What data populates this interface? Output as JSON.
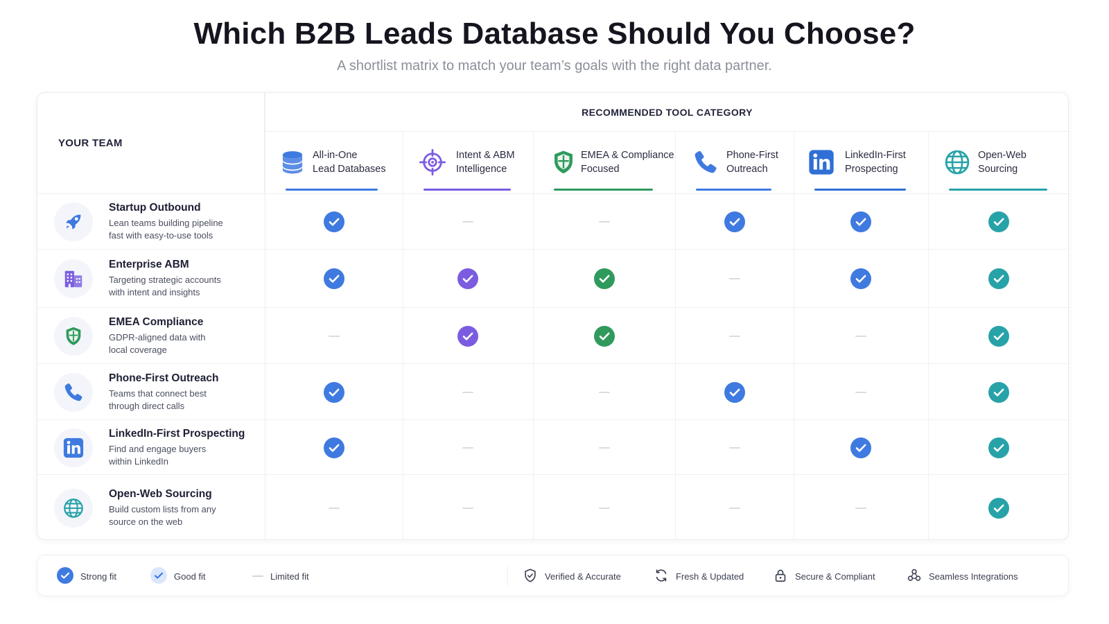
{
  "header": {
    "title": "Which B2B Leads Database Should You Choose?",
    "subtitle": "A shortlist matrix to match your team’s goals with the right data partner."
  },
  "matrix": {
    "team_header": "YOUR TEAM",
    "category_header": "RECOMMENDED TOOL CATEGORY",
    "columns": [
      {
        "line1": "All-in-One",
        "line2": "Lead Databases",
        "icon": "database-icon",
        "color": "#3f7ae0"
      },
      {
        "line1": "Intent & ABM",
        "line2": "Intelligence",
        "icon": "target-icon",
        "color": "#7b5ce0"
      },
      {
        "line1": "EMEA & Compliance",
        "line2": "Focused",
        "icon": "shield-icon",
        "color": "#2f9a5c"
      },
      {
        "line1": "Phone-First",
        "line2": "Outreach",
        "icon": "phone-icon",
        "color": "#3f7ae0"
      },
      {
        "line1": "LinkedIn-First",
        "line2": "Prospecting",
        "icon": "linkedin-icon",
        "color": "#2f6fd6"
      },
      {
        "line1": "Open-Web",
        "line2": "Sourcing",
        "icon": "globe-icon",
        "color": "#27a3a8"
      }
    ],
    "rows": [
      {
        "title": "Startup Outbound",
        "desc1": "Lean teams building pipeline",
        "desc2": "fast with easy-to-use tools",
        "icon": "rocket-icon",
        "fits": [
          "strong",
          "limited",
          "limited",
          "strong",
          "strong",
          "strong"
        ]
      },
      {
        "title": "Enterprise ABM",
        "desc1": "Targeting strategic accounts",
        "desc2": "with intent and insights",
        "icon": "building-icon",
        "fits": [
          "strong",
          "strong",
          "strong",
          "limited",
          "strong",
          "strong"
        ]
      },
      {
        "title": "EMEA Compliance",
        "desc1": "GDPR-aligned data with",
        "desc2": "local coverage",
        "icon": "shield-icon",
        "fits": [
          "limited",
          "strong",
          "strong",
          "limited",
          "limited",
          "strong"
        ]
      },
      {
        "title": "Phone-First Outreach",
        "desc1": "Teams that connect best",
        "desc2": "through direct calls",
        "icon": "phone-icon",
        "fits": [
          "strong",
          "limited",
          "limited",
          "strong",
          "limited",
          "strong"
        ]
      },
      {
        "title": "LinkedIn-First Prospecting",
        "desc1": "Find and engage buyers",
        "desc2": "within LinkedIn",
        "icon": "linkedin-icon",
        "fits": [
          "strong",
          "limited",
          "limited",
          "limited",
          "strong",
          "strong"
        ]
      },
      {
        "title": "Open-Web Sourcing",
        "desc1": "Build custom lists from any",
        "desc2": "source on the web",
        "icon": "globe-icon",
        "fits": [
          "limited",
          "limited",
          "limited",
          "limited",
          "limited",
          "strong"
        ]
      }
    ]
  },
  "legend": {
    "strong": "Strong fit",
    "good": "Good fit",
    "limited": "Limited fit",
    "verified": "Verified & Accurate",
    "fresh": "Fresh & Updated",
    "secure": "Secure & Compliant",
    "integrations": "Seamless Integrations"
  },
  "colors": {
    "blue": "#3f7ae0",
    "purple": "#7b5ce0",
    "green": "#2f9a5c",
    "teal": "#27a3a8",
    "good_fill": "#dbe7fb"
  }
}
